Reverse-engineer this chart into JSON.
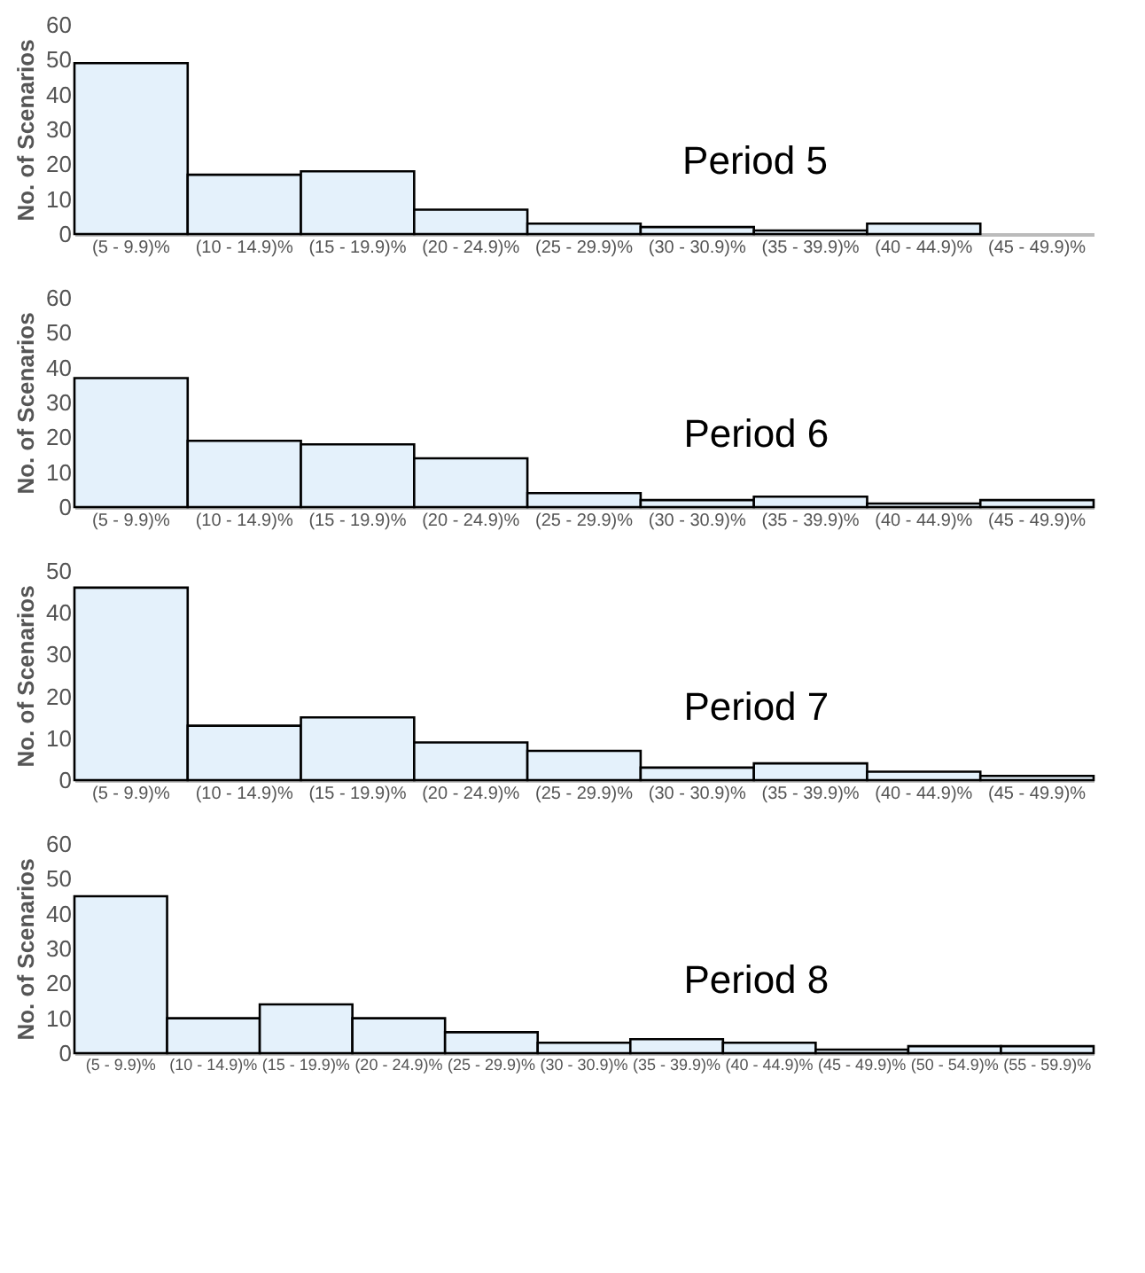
{
  "chart_data": [
    {
      "type": "bar",
      "title": "Period 5",
      "ylabel": "No. of Scenarios",
      "categories": [
        "(5 - 9.9)%",
        "(10 - 14.9)%",
        "(15 - 19.9)%",
        "(20 - 24.9)%",
        "(25 - 29.9)%",
        "(30 - 30.9)%",
        "(35 - 39.9)%",
        "(40 - 44.9)%",
        "(45 - 49.9)%"
      ],
      "values": [
        49,
        17,
        18,
        7,
        3,
        2,
        1,
        3,
        0
      ],
      "color": "#e4f1fb",
      "ylim": [
        0,
        60
      ],
      "yticks": [
        0,
        10,
        20,
        30,
        40,
        50,
        60
      ]
    },
    {
      "type": "bar",
      "title": "Period 6",
      "ylabel": "No. of Scenarios",
      "categories": [
        "(5 - 9.9)%",
        "(10 - 14.9)%",
        "(15 - 19.9)%",
        "(20 - 24.9)%",
        "(25 - 29.9)%",
        "(30 - 30.9)%",
        "(35 - 39.9)%",
        "(40 - 44.9)%",
        "(45 - 49.9)%"
      ],
      "values": [
        37,
        19,
        18,
        14,
        4,
        2,
        3,
        1,
        2
      ],
      "color": "#e4f1fb",
      "ylim": [
        0,
        60
      ],
      "yticks": [
        0,
        10,
        20,
        30,
        40,
        50,
        60
      ]
    },
    {
      "type": "bar",
      "title": "Period 7",
      "ylabel": "No. of Scenarios",
      "categories": [
        "(5 - 9.9)%",
        "(10 - 14.9)%",
        "(15 - 19.9)%",
        "(20 - 24.9)%",
        "(25 - 29.9)%",
        "(30 - 30.9)%",
        "(35 - 39.9)%",
        "(40 - 44.9)%",
        "(45 - 49.9)%"
      ],
      "values": [
        46,
        13,
        15,
        9,
        7,
        3,
        4,
        2,
        1
      ],
      "color": "#e4f1fb",
      "ylim": [
        0,
        50
      ],
      "yticks": [
        0,
        10,
        20,
        30,
        40,
        50
      ]
    },
    {
      "type": "bar",
      "title": "Period 8",
      "ylabel": "No. of Scenarios",
      "categories": [
        "(5 - 9.9)%",
        "(10 - 14.9)%",
        "(15 - 19.9)%",
        "(20 - 24.9)%",
        "(25 - 29.9)%",
        "(30 - 30.9)%",
        "(35 - 39.9)%",
        "(40 - 44.9)%",
        "(45 - 49.9)%",
        "(50 - 54.9)%",
        "(55 - 59.9)%"
      ],
      "values": [
        45,
        10,
        14,
        10,
        6,
        3,
        4,
        3,
        1,
        2,
        2
      ],
      "color": "#e4f1fb",
      "ylim": [
        0,
        60
      ],
      "yticks": [
        0,
        10,
        20,
        30,
        40,
        50,
        60
      ]
    }
  ]
}
